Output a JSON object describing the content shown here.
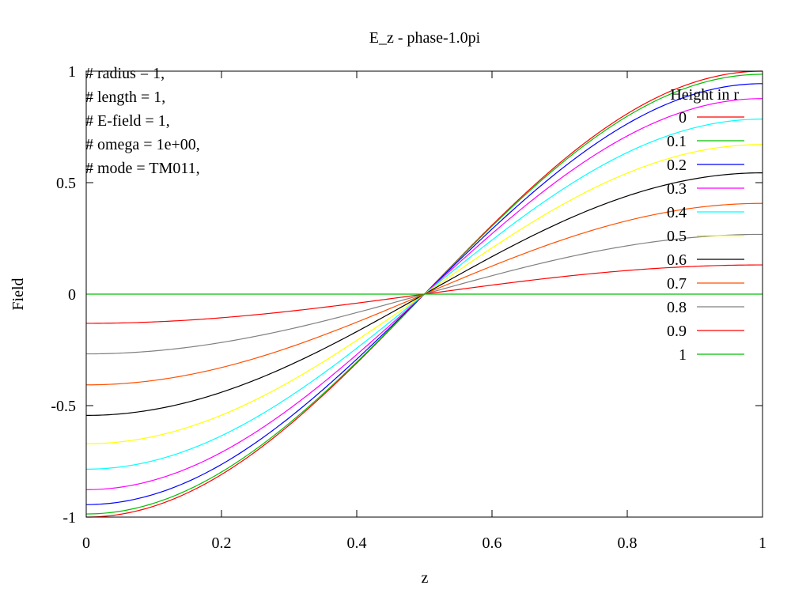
{
  "chart_data": {
    "type": "line",
    "title": "E_z - phase-1.0pi",
    "xlabel": "z",
    "ylabel": "Field",
    "xlim": [
      0,
      1
    ],
    "ylim": [
      -1,
      1
    ],
    "x_ticks": [
      0,
      0.2,
      0.4,
      0.6,
      0.8,
      1
    ],
    "x_tick_labels": [
      "0",
      "0.2",
      "0.4",
      "0.6",
      "0.8",
      "1"
    ],
    "y_ticks": [
      -1,
      -0.5,
      0,
      0.5,
      1
    ],
    "y_tick_labels": [
      "-1",
      "-0.5",
      "0",
      "0.5",
      "1"
    ],
    "grid": false,
    "legend_placement": "top-right",
    "legend_title": "Height in r",
    "annotations": [
      "# radius = 1,",
      "# length = 1,",
      "# E-field = 1,",
      "# omega = 1e+00,",
      "# mode = TM011,"
    ],
    "function": "y = -amplitude * cos(pi * z)",
    "x": [
      0,
      0.1,
      0.2,
      0.3,
      0.4,
      0.5,
      0.6,
      0.7,
      0.8,
      0.9,
      1
    ],
    "series": [
      {
        "name": "0",
        "color": "#ff0000",
        "amplitude": 1.0,
        "values": [
          -1.0,
          -0.951,
          -0.809,
          -0.588,
          -0.309,
          0,
          0.309,
          0.588,
          0.809,
          0.951,
          1.0
        ]
      },
      {
        "name": "0.1",
        "color": "#00c000",
        "amplitude": 0.986,
        "values": [
          -0.986,
          -0.938,
          -0.798,
          -0.58,
          -0.305,
          0,
          0.305,
          0.58,
          0.798,
          0.938,
          0.986
        ]
      },
      {
        "name": "0.2",
        "color": "#0000ff",
        "amplitude": 0.944,
        "values": [
          -0.944,
          -0.898,
          -0.764,
          -0.555,
          -0.292,
          0,
          0.292,
          0.555,
          0.764,
          0.898,
          0.944
        ]
      },
      {
        "name": "0.3",
        "color": "#ff00ff",
        "amplitude": 0.877,
        "values": [
          -0.877,
          -0.834,
          -0.71,
          -0.516,
          -0.271,
          0,
          0.271,
          0.516,
          0.71,
          0.834,
          0.877
        ]
      },
      {
        "name": "0.4",
        "color": "#00ffff",
        "amplitude": 0.785,
        "values": [
          -0.785,
          -0.747,
          -0.635,
          -0.461,
          -0.243,
          0,
          0.243,
          0.461,
          0.635,
          0.747,
          0.785
        ]
      },
      {
        "name": "0.5",
        "color": "#ffff00",
        "amplitude": 0.671,
        "values": [
          -0.671,
          -0.638,
          -0.543,
          -0.394,
          -0.207,
          0,
          0.207,
          0.394,
          0.543,
          0.638,
          0.671
        ]
      },
      {
        "name": "0.6",
        "color": "#000000",
        "amplitude": 0.544,
        "values": [
          -0.544,
          -0.517,
          -0.44,
          -0.32,
          -0.168,
          0,
          0.168,
          0.32,
          0.44,
          0.517,
          0.544
        ]
      },
      {
        "name": "0.7",
        "color": "#ff5000",
        "amplitude": 0.407,
        "values": [
          -0.407,
          -0.387,
          -0.329,
          -0.239,
          -0.126,
          0,
          0.126,
          0.239,
          0.329,
          0.387,
          0.407
        ]
      },
      {
        "name": "0.8",
        "color": "#808080",
        "amplitude": 0.268,
        "values": [
          -0.268,
          -0.255,
          -0.217,
          -0.158,
          -0.083,
          0,
          0.083,
          0.158,
          0.217,
          0.255,
          0.268
        ]
      },
      {
        "name": "0.9",
        "color": "#ff0000",
        "amplitude": 0.131,
        "values": [
          -0.131,
          -0.125,
          -0.106,
          -0.077,
          -0.04,
          0,
          0.04,
          0.077,
          0.106,
          0.125,
          0.131
        ]
      },
      {
        "name": "1",
        "color": "#00c000",
        "amplitude": 0.0,
        "values": [
          0,
          0,
          0,
          0,
          0,
          0,
          0,
          0,
          0,
          0,
          0
        ]
      }
    ]
  }
}
